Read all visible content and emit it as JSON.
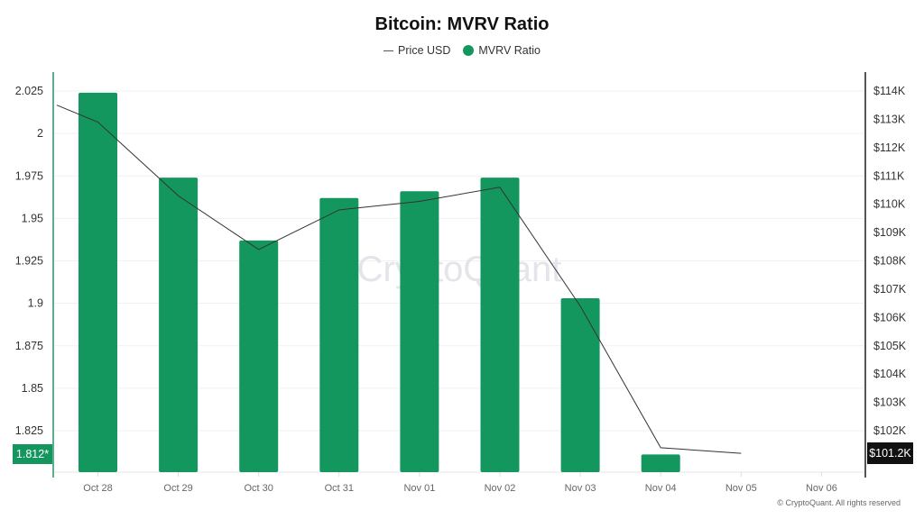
{
  "header": {
    "title": "Bitcoin: MVRV Ratio"
  },
  "legend": {
    "items": [
      {
        "label": "Price USD",
        "type": "line",
        "color": "#555555"
      },
      {
        "label": "MVRV Ratio",
        "type": "dot",
        "color": "#14975f"
      }
    ]
  },
  "markers": {
    "left_current": "1.812*",
    "right_current": "$101.2K"
  },
  "footer": {
    "copyright": "© CryptoQuant. All rights reserved"
  },
  "watermark": "CryptoQuant",
  "colors": {
    "bar": "#14975f",
    "price_line": "#333333",
    "left_axis": "#5fae8d",
    "right_axis": "#555555",
    "marker_left_bg": "#14975f",
    "marker_right_bg": "#111111",
    "grid": "#f1f1f1"
  },
  "chart_data": {
    "type": "bar",
    "title": "Bitcoin: MVRV Ratio",
    "categories": [
      "Oct 28",
      "Oct 29",
      "Oct 30",
      "Oct 31",
      "Nov 01",
      "Nov 02",
      "Nov 03",
      "Nov 04",
      "Nov 05",
      "Nov 06"
    ],
    "series": [
      {
        "name": "MVRV Ratio",
        "type": "bar",
        "axis": "left",
        "values": [
          2.024,
          1.974,
          1.937,
          1.962,
          1.966,
          1.974,
          1.903,
          1.811,
          null,
          null
        ]
      },
      {
        "name": "Price USD",
        "type": "line",
        "axis": "right",
        "values": [
          112900,
          110300,
          108400,
          109800,
          110100,
          110600,
          106400,
          101400,
          101200,
          null
        ]
      }
    ],
    "left_axis": {
      "ticks": [
        "2.025",
        "2",
        "1.975",
        "1.95",
        "1.925",
        "1.9",
        "1.875",
        "1.85",
        "1.825"
      ],
      "tick_values": [
        2.025,
        2.0,
        1.975,
        1.95,
        1.925,
        1.9,
        1.875,
        1.85,
        1.825
      ],
      "ylim": [
        1.8,
        2.03
      ]
    },
    "right_axis": {
      "ticks": [
        "$114K",
        "$113K",
        "$112K",
        "$111K",
        "$110K",
        "$109K",
        "$108K",
        "$107K",
        "$106K",
        "$105K",
        "$104K",
        "$103K",
        "$102K",
        "$101K"
      ],
      "tick_values": [
        114000,
        113000,
        112000,
        111000,
        110000,
        109000,
        108000,
        107000,
        106000,
        105000,
        104000,
        103000,
        102000,
        101000
      ],
      "ylim": [
        100500,
        114000
      ]
    },
    "current_values": {
      "mvrv": "1.812*",
      "price": "$101.2K"
    },
    "xlabel": "",
    "ylabel": "",
    "grid": true,
    "legend_position": "top"
  }
}
